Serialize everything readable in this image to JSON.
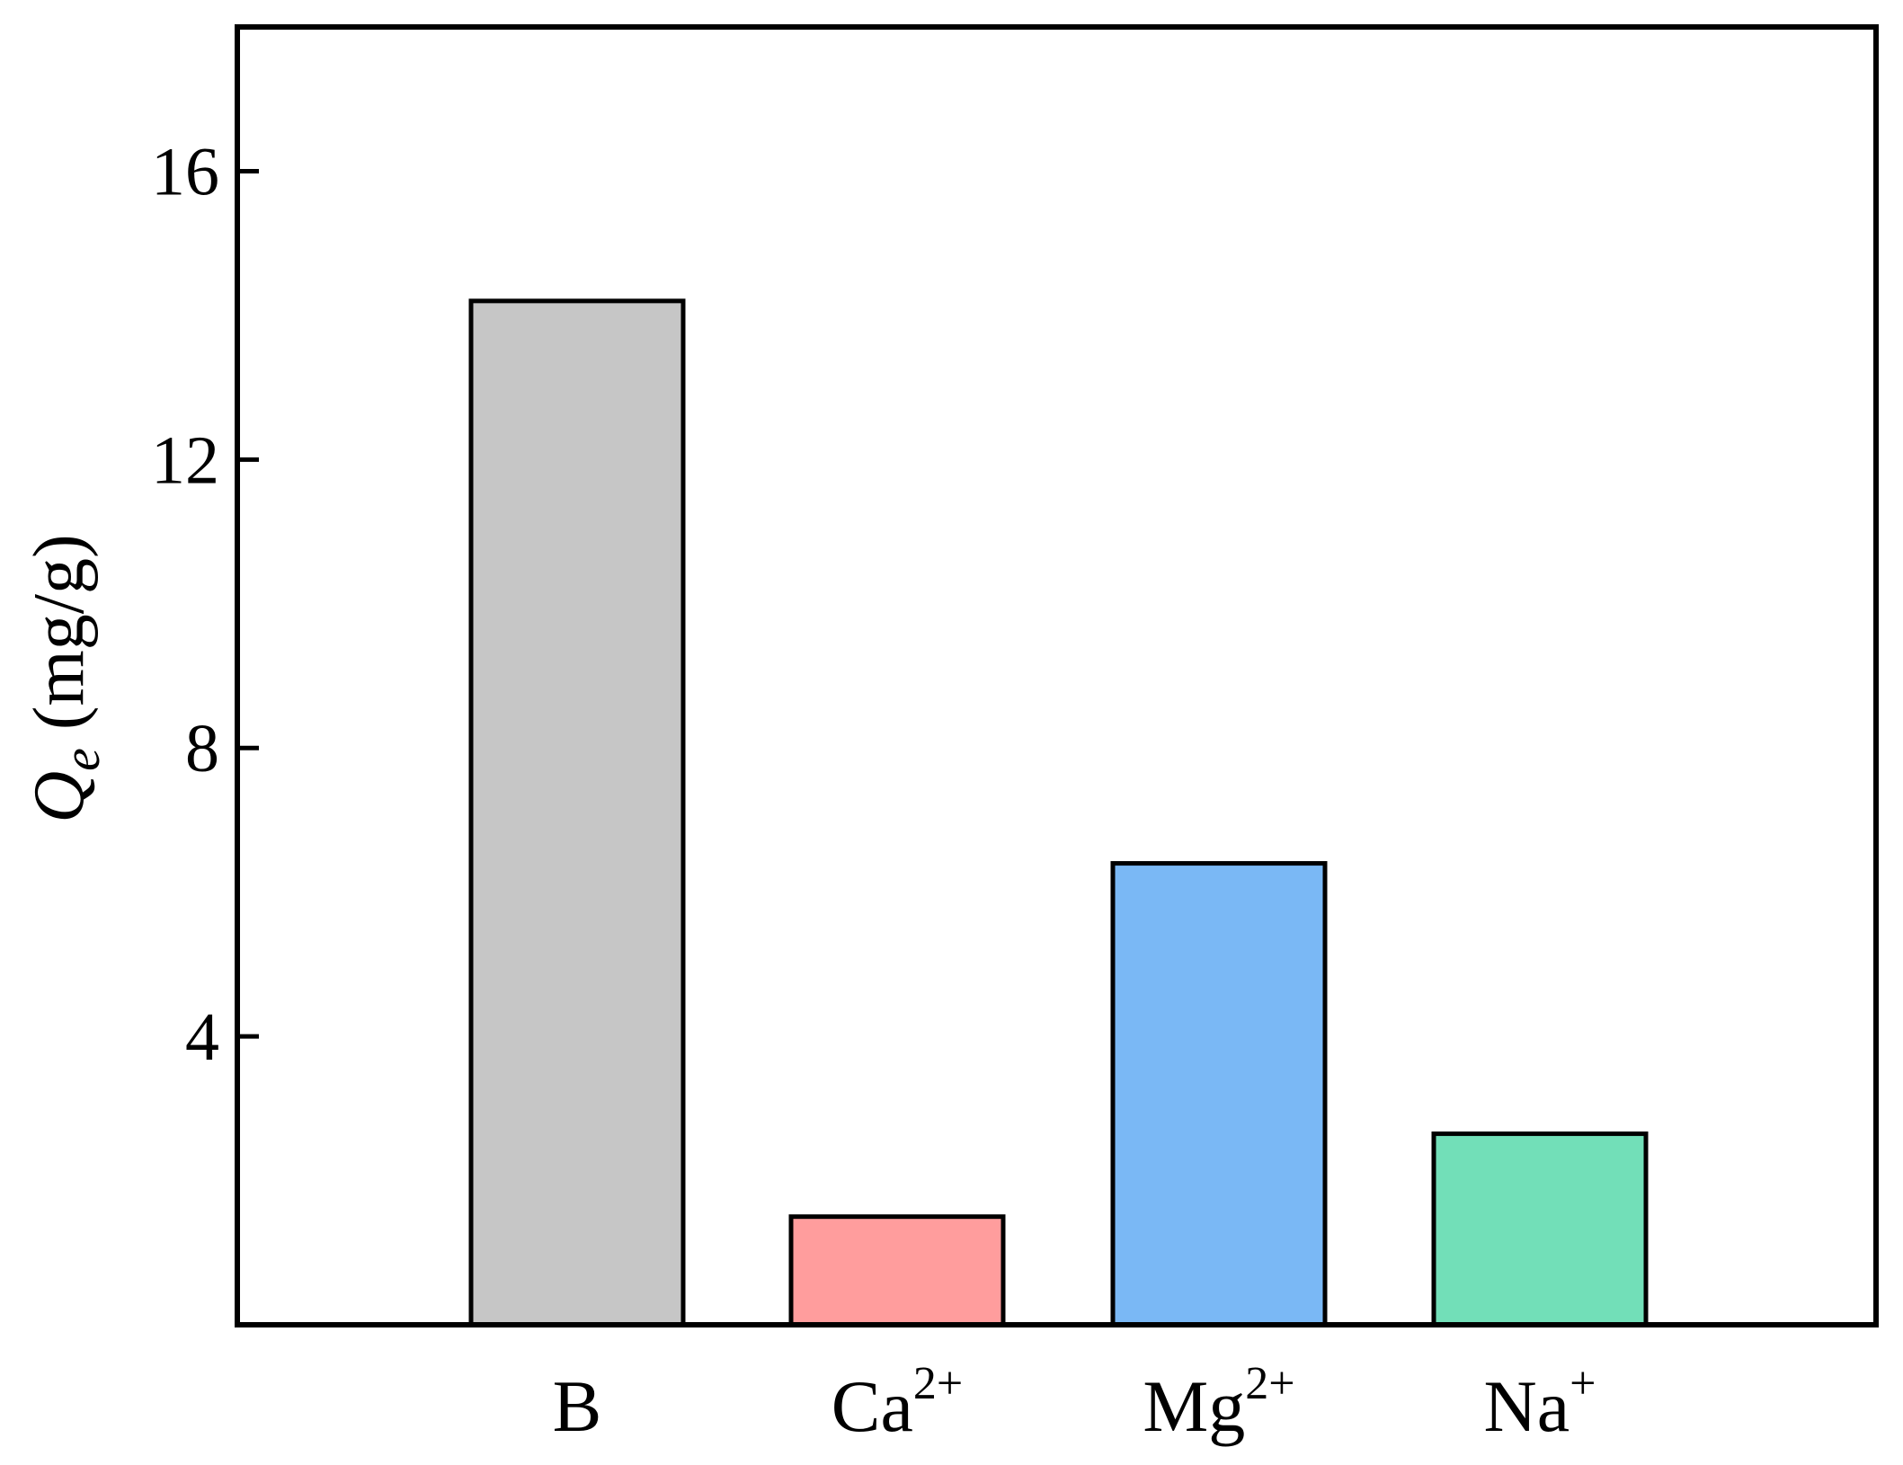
{
  "chart_data": {
    "type": "bar",
    "categories": [
      {
        "base": "B",
        "sup": ""
      },
      {
        "base": "Ca",
        "sup": "2+"
      },
      {
        "base": "Mg",
        "sup": "2+"
      },
      {
        "base": "Na",
        "sup": "+"
      }
    ],
    "values": [
      14.2,
      1.5,
      6.4,
      2.65
    ],
    "colors": [
      "#c6c6c6",
      "#ff9d9d",
      "#7ab8f5",
      "#72dfb8"
    ],
    "ylabel": {
      "symbol": "Q",
      "subscript": "e",
      "units": " (mg/g)"
    },
    "ylim": [
      0,
      18
    ],
    "yticks": [
      "4",
      "8",
      "12",
      "16"
    ],
    "ytick_values": [
      4,
      8,
      12,
      16
    ],
    "grid": false
  }
}
